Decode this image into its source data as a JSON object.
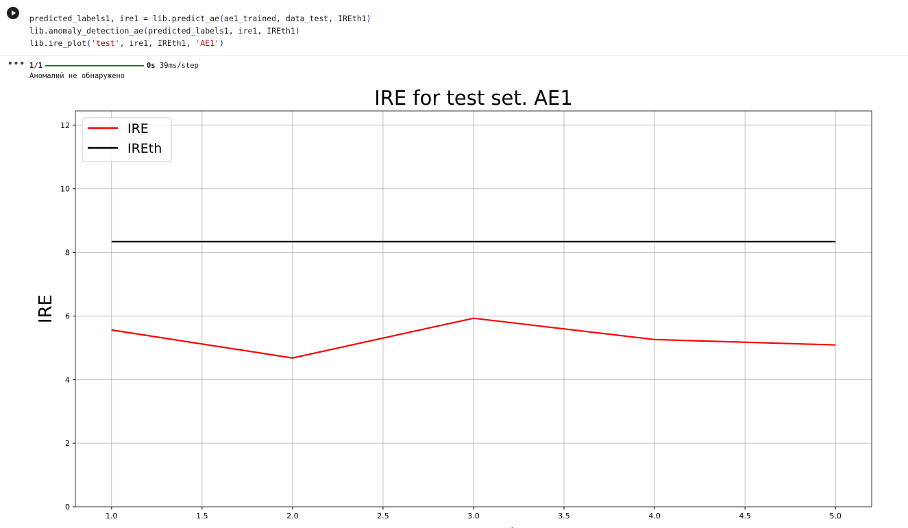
{
  "cell": {
    "code_lines": [
      {
        "pre": "predicted_labels1, ire1 = lib.predict_ae",
        "open": "(",
        "args": "ae1_trained, data_test, IREth1",
        "close": ")"
      },
      {
        "pre": "lib.anomaly_detection_ae",
        "open": "(",
        "args": "predicted_labels1, ire1, IREth1",
        "close": ")"
      },
      {
        "pre": "lib.ire_plot",
        "open": "(",
        "s1": "'test'",
        "mid": ", ire1, IREth1, ",
        "s2": "'AE1'",
        "close": ")"
      }
    ]
  },
  "output": {
    "progress_step": "1/1",
    "progress_fraction": 1.0,
    "progress_time": "0s",
    "progress_rate": "39ms/step",
    "message": "Аномалий не обнаружено"
  },
  "chart_data": {
    "type": "line",
    "title": "IRE for test set. AE1",
    "xlabel": "Vector number",
    "ylabel": "IRE",
    "xlim": [
      0.8,
      5.2
    ],
    "ylim": [
      0,
      12.45
    ],
    "xticks": [
      "1.0",
      "1.5",
      "2.0",
      "2.5",
      "3.0",
      "3.5",
      "4.0",
      "4.5",
      "5.0"
    ],
    "yticks": [
      "0",
      "2",
      "4",
      "6",
      "8",
      "10",
      "12"
    ],
    "grid": true,
    "legend": "top-left",
    "series": [
      {
        "name": "IRE",
        "color": "#ff0000",
        "x": [
          1,
          2,
          3,
          4,
          5
        ],
        "y": [
          5.56,
          4.68,
          5.93,
          5.26,
          5.09
        ]
      },
      {
        "name": "IREth",
        "color": "#000000",
        "x": [
          1,
          2,
          3,
          4,
          5
        ],
        "y": [
          8.34,
          8.34,
          8.34,
          8.34,
          8.34
        ]
      }
    ]
  }
}
